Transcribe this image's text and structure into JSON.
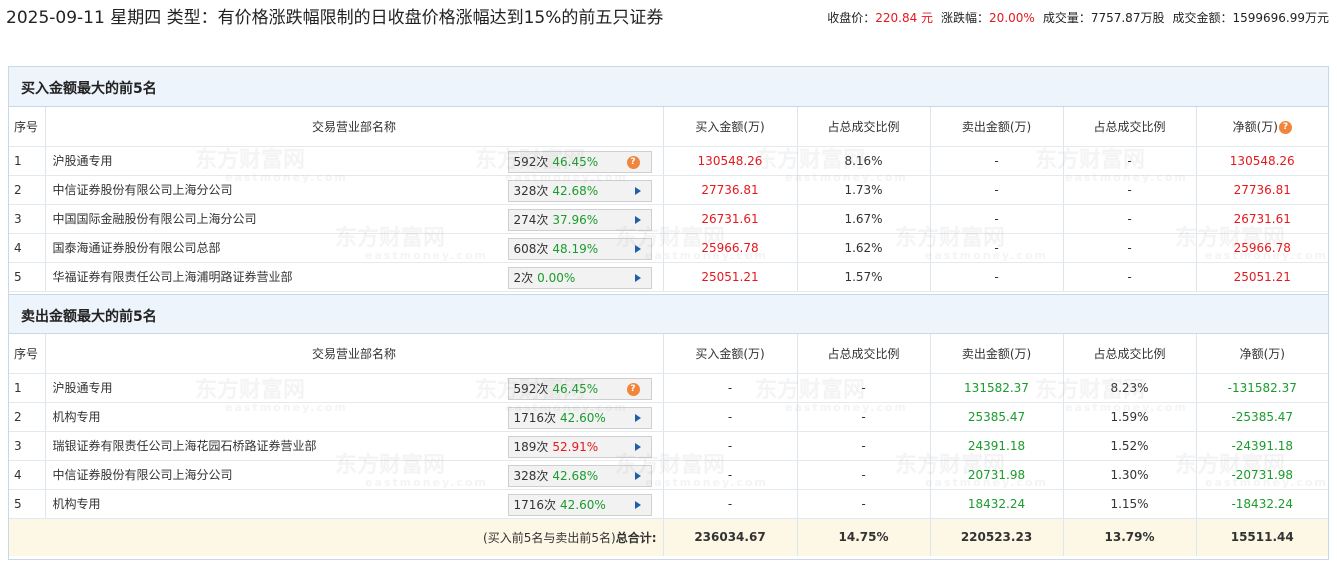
{
  "header": {
    "title": "2025-09-11 星期四 类型：有价格涨跌幅限制的日收盘价格涨幅达到15%的前五只证券",
    "close_label": "收盘价：",
    "close_value": "220.84 元",
    "change_label": "涨跌幅：",
    "change_value": "20.00%",
    "volume_label": "成交量：",
    "volume_value": "7757.87万股",
    "amount_label": "成交金额：",
    "amount_value": "1599696.99万元"
  },
  "watermark": {
    "cn": "东方财富网",
    "en": "eastmoney.com"
  },
  "buy_section": {
    "title": "买入金额最大的前5名",
    "columns": [
      "序号",
      "交易营业部名称",
      "买入金额(万)",
      "占总成交比例",
      "卖出金额(万)",
      "占总成交比例",
      "净额(万)"
    ],
    "rows": [
      {
        "idx": "1",
        "name": "沪股通专用",
        "count": "592次",
        "rate": "46.45%",
        "rate_color": "green",
        "icon": "question-icon",
        "buy": "130548.26",
        "buy_pct": "8.16%",
        "sell": "-",
        "sell_pct": "-",
        "net": "130548.26",
        "net_color": "red"
      },
      {
        "idx": "2",
        "name": "中信证券股份有限公司上海分公司",
        "count": "328次",
        "rate": "42.68%",
        "rate_color": "green",
        "icon": "play-arrow-icon",
        "buy": "27736.81",
        "buy_pct": "1.73%",
        "sell": "-",
        "sell_pct": "-",
        "net": "27736.81",
        "net_color": "red"
      },
      {
        "idx": "3",
        "name": "中国国际金融股份有限公司上海分公司",
        "count": "274次",
        "rate": "37.96%",
        "rate_color": "green",
        "icon": "play-arrow-icon",
        "buy": "26731.61",
        "buy_pct": "1.67%",
        "sell": "-",
        "sell_pct": "-",
        "net": "26731.61",
        "net_color": "red"
      },
      {
        "idx": "4",
        "name": "国泰海通证券股份有限公司总部",
        "count": "608次",
        "rate": "48.19%",
        "rate_color": "green",
        "icon": "play-arrow-icon",
        "buy": "25966.78",
        "buy_pct": "1.62%",
        "sell": "-",
        "sell_pct": "-",
        "net": "25966.78",
        "net_color": "red"
      },
      {
        "idx": "5",
        "name": "华福证券有限责任公司上海浦明路证券营业部",
        "count": "2次",
        "rate": "0.00%",
        "rate_color": "green",
        "icon": "play-arrow-icon",
        "buy": "25051.21",
        "buy_pct": "1.57%",
        "sell": "-",
        "sell_pct": "-",
        "net": "25051.21",
        "net_color": "red"
      }
    ]
  },
  "sell_section": {
    "title": "卖出金额最大的前5名",
    "columns": [
      "序号",
      "交易营业部名称",
      "买入金额(万)",
      "占总成交比例",
      "卖出金额(万)",
      "占总成交比例",
      "净额(万)"
    ],
    "rows": [
      {
        "idx": "1",
        "name": "沪股通专用",
        "count": "592次",
        "rate": "46.45%",
        "rate_color": "green",
        "icon": "question-icon",
        "buy": "-",
        "buy_pct": "-",
        "sell": "131582.37",
        "sell_pct": "8.23%",
        "net": "-131582.37",
        "net_color": "green"
      },
      {
        "idx": "2",
        "name": "机构专用",
        "count": "1716次",
        "rate": "42.60%",
        "rate_color": "green",
        "icon": "play-arrow-icon",
        "buy": "-",
        "buy_pct": "-",
        "sell": "25385.47",
        "sell_pct": "1.59%",
        "net": "-25385.47",
        "net_color": "green"
      },
      {
        "idx": "3",
        "name": "瑞银证券有限责任公司上海花园石桥路证券营业部",
        "count": "189次",
        "rate": "52.91%",
        "rate_color": "red",
        "icon": "play-arrow-icon",
        "buy": "-",
        "buy_pct": "-",
        "sell": "24391.18",
        "sell_pct": "1.52%",
        "net": "-24391.18",
        "net_color": "green"
      },
      {
        "idx": "4",
        "name": "中信证券股份有限公司上海分公司",
        "count": "328次",
        "rate": "42.68%",
        "rate_color": "green",
        "icon": "play-arrow-icon",
        "buy": "-",
        "buy_pct": "-",
        "sell": "20731.98",
        "sell_pct": "1.30%",
        "net": "-20731.98",
        "net_color": "green"
      },
      {
        "idx": "5",
        "name": "机构专用",
        "count": "1716次",
        "rate": "42.60%",
        "rate_color": "green",
        "icon": "play-arrow-icon",
        "buy": "-",
        "buy_pct": "-",
        "sell": "18432.24",
        "sell_pct": "1.15%",
        "net": "-18432.24",
        "net_color": "green"
      }
    ]
  },
  "total": {
    "label_prefix": "(买入前5名与卖出前5名)",
    "label_bold": "总合计:",
    "buy": "236034.67",
    "buy_pct": "14.75%",
    "sell": "220523.23",
    "sell_pct": "13.79%",
    "net": "15511.44"
  },
  "colors": {
    "red": "#e4191e",
    "green": "#1a9c2d",
    "header_bg": "#edf4fb",
    "total_bg": "#fdf8e6"
  }
}
